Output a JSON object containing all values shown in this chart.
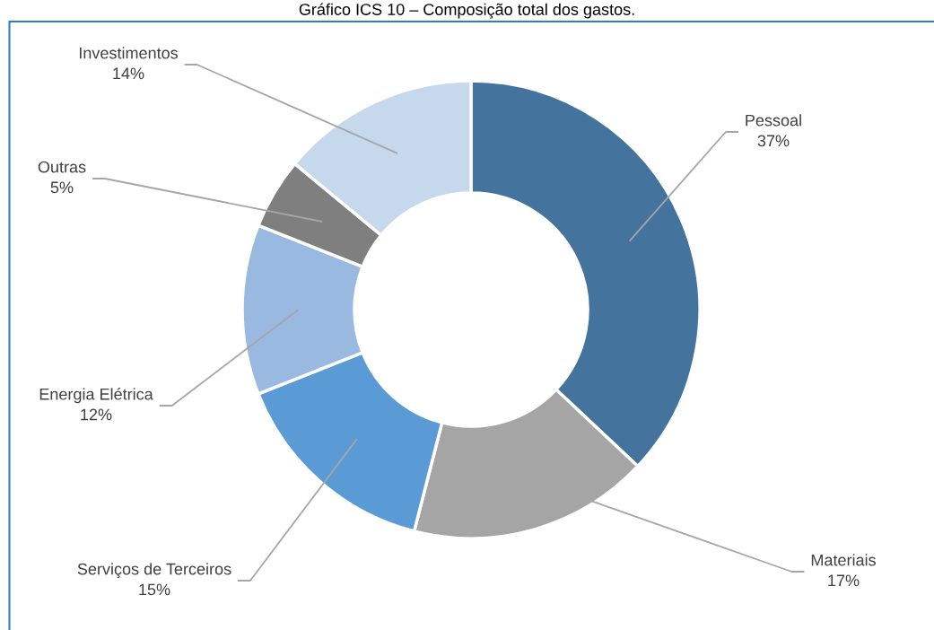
{
  "chart_data": {
    "type": "donut",
    "title": "Gráfico ICS 10 – Composição total dos gastos.",
    "categories": [
      "Pessoal",
      "Materiais",
      "Serviços de Terceiros",
      "Energia Elétrica",
      "Outras",
      "Investimentos"
    ],
    "values": [
      37,
      17,
      15,
      12,
      5,
      14
    ],
    "value_labels": [
      "37%",
      "17%",
      "15%",
      "12%",
      "5%",
      "14%"
    ],
    "colors": [
      "#44739e",
      "#a5a5a5",
      "#5b9bd5",
      "#99b9e0",
      "#7f7f7f",
      "#c6d8ec"
    ]
  }
}
